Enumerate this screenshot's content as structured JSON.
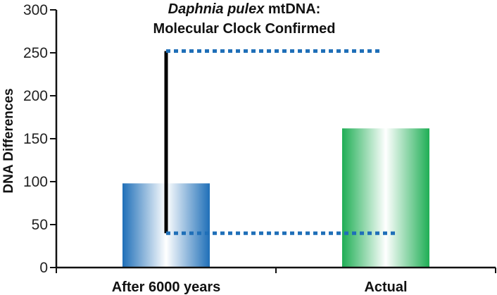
{
  "chart_data": {
    "type": "bar",
    "title_italic": "Daphnia pulex",
    "title_rest": " mtDNA:",
    "title_line2": "Molecular Clock Confirmed",
    "ylabel": "DNA Differences",
    "ylim": [
      0,
      300
    ],
    "yticks": [
      "0",
      "50",
      "100",
      "150",
      "200",
      "250",
      "300"
    ],
    "categories": [
      "After 6000 years",
      "Actual"
    ],
    "values": [
      98,
      162
    ],
    "bar_colors": [
      "#1f6fb8",
      "#1fae55"
    ],
    "range_annotation": {
      "low": 40,
      "high": 252,
      "color": "#1f6fb8",
      "bracket_color": "#000000"
    },
    "grid": false
  }
}
